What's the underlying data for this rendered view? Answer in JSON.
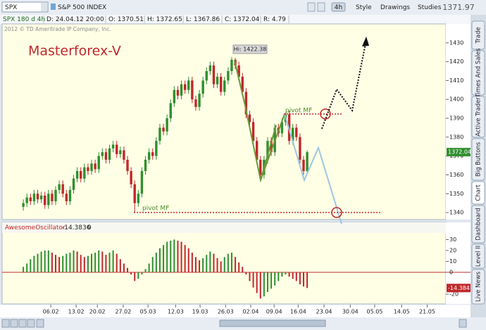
{
  "toolbar": {
    "symbol": "SPX",
    "description": "S&P 500 INDEX",
    "timeframe": "4h",
    "style": "Style",
    "drawings": "Drawings",
    "studies": "Studies",
    "last": "1371.97"
  },
  "info": [
    "SPX 180 d 4h",
    "D: 24.04.12 20:00",
    "O: 1370.51",
    "H: 1372.65",
    "L: 1367.86",
    "C: 1372.04",
    "R: 4.79"
  ],
  "sidebar": [
    "Trade",
    "Times And Sales",
    "Active Trader",
    "Big Buttons",
    "Chart",
    "Dashboard",
    "Level II",
    "Live News"
  ],
  "chart_data": [
    {
      "type": "candlestick",
      "title": "Masterforex-V",
      "watermark": "2012 © TD Ameritrade IP Company, Inc.",
      "annotations": [
        "Hi: 1422.38",
        "pivot MF",
        "pivot MF"
      ],
      "last_label": "1372.04",
      "up_color": "#2f8f2f",
      "down_color": "#c0282a",
      "open": [
        1343,
        1345,
        1348,
        1346,
        1350,
        1347,
        1349,
        1344,
        1350,
        1346,
        1352,
        1355,
        1350,
        1346,
        1352,
        1358,
        1362,
        1358,
        1364,
        1362,
        1366,
        1363,
        1370,
        1372,
        1368,
        1374,
        1376,
        1371,
        1373,
        1368,
        1362,
        1355,
        1345,
        1350,
        1362,
        1368,
        1372,
        1370,
        1378,
        1385,
        1383,
        1390,
        1398,
        1405,
        1402,
        1408,
        1405,
        1410,
        1400,
        1396,
        1403,
        1410,
        1415,
        1418,
        1408,
        1412,
        1404,
        1410,
        1415,
        1421,
        1418,
        1412,
        1404,
        1392,
        1388,
        1378,
        1368,
        1360,
        1368,
        1378,
        1372,
        1385,
        1382,
        1388,
        1392,
        1378,
        1385,
        1380,
        1368,
        1362
      ],
      "high": [
        1347,
        1350,
        1350,
        1352,
        1352,
        1351,
        1351,
        1352,
        1352,
        1354,
        1357,
        1357,
        1352,
        1354,
        1360,
        1364,
        1364,
        1366,
        1366,
        1368,
        1368,
        1372,
        1374,
        1374,
        1376,
        1378,
        1378,
        1375,
        1375,
        1370,
        1364,
        1357,
        1352,
        1364,
        1370,
        1374,
        1374,
        1380,
        1387,
        1387,
        1392,
        1400,
        1407,
        1407,
        1410,
        1410,
        1412,
        1412,
        1402,
        1405,
        1412,
        1417,
        1420,
        1420,
        1414,
        1414,
        1412,
        1417,
        1422.38,
        1422,
        1420,
        1414,
        1406,
        1394,
        1390,
        1380,
        1370,
        1370,
        1380,
        1380,
        1387,
        1387,
        1390,
        1393,
        1394,
        1387,
        1387,
        1382,
        1370,
        1373
      ],
      "low": [
        1341,
        1343,
        1344,
        1344,
        1345,
        1345,
        1342,
        1342,
        1344,
        1344,
        1350,
        1348,
        1344,
        1344,
        1350,
        1356,
        1356,
        1356,
        1360,
        1360,
        1361,
        1361,
        1368,
        1366,
        1366,
        1372,
        1369,
        1369,
        1366,
        1360,
        1353,
        1340,
        1343,
        1348,
        1360,
        1366,
        1368,
        1368,
        1376,
        1381,
        1381,
        1388,
        1396,
        1400,
        1400,
        1403,
        1403,
        1398,
        1394,
        1394,
        1401,
        1408,
        1413,
        1406,
        1406,
        1402,
        1402,
        1408,
        1413,
        1416,
        1410,
        1402,
        1390,
        1386,
        1376,
        1366,
        1357,
        1358,
        1366,
        1370,
        1370,
        1380,
        1380,
        1386,
        1376,
        1376,
        1378,
        1366,
        1360,
        1360
      ],
      "close": [
        1345,
        1348,
        1346,
        1350,
        1347,
        1349,
        1344,
        1350,
        1346,
        1352,
        1355,
        1350,
        1346,
        1352,
        1358,
        1362,
        1358,
        1364,
        1362,
        1366,
        1363,
        1370,
        1372,
        1368,
        1374,
        1376,
        1371,
        1373,
        1368,
        1362,
        1355,
        1345,
        1350,
        1362,
        1368,
        1372,
        1370,
        1378,
        1385,
        1383,
        1390,
        1398,
        1405,
        1402,
        1408,
        1405,
        1410,
        1400,
        1396,
        1403,
        1410,
        1415,
        1418,
        1408,
        1412,
        1404,
        1410,
        1415,
        1421,
        1418,
        1412,
        1404,
        1392,
        1388,
        1378,
        1368,
        1360,
        1368,
        1378,
        1372,
        1385,
        1382,
        1388,
        1392,
        1378,
        1385,
        1380,
        1368,
        1362,
        1372.04
      ],
      "xlim": [
        -5.9,
        117.6
      ],
      "xticks": [
        {
          "value": 7.65,
          "label": "06.02"
        },
        {
          "value": 14.7,
          "label": "13.02"
        },
        {
          "value": 20.6,
          "label": "20.02"
        },
        {
          "value": 27.8,
          "label": "27.02"
        },
        {
          "value": 34.7,
          "label": "05.03"
        },
        {
          "value": 42.4,
          "label": "12.03"
        },
        {
          "value": 49.2,
          "label": "19.03"
        },
        {
          "value": 56.3,
          "label": "26.03"
        },
        {
          "value": 63.3,
          "label": "02.04"
        },
        {
          "value": 69.8,
          "label": "09.04"
        },
        {
          "value": 76.5,
          "label": "16.04"
        },
        {
          "value": 83.7,
          "label": "23.04"
        },
        {
          "value": 91,
          "label": "30.04"
        },
        {
          "value": 97.8,
          "label": "05.05"
        },
        {
          "value": 105.3,
          "label": "14.05"
        },
        {
          "value": 112.4,
          "label": "21.05"
        }
      ],
      "ylim": [
        1336.3,
        1440
      ],
      "yticks": [
        1340,
        1350,
        1360,
        1370,
        1380,
        1390,
        1400,
        1410,
        1420,
        1430
      ]
    },
    {
      "type": "bar",
      "title": "AwesomeOscillator",
      "subtitle": [
        "-14.3836",
        "0"
      ],
      "last_label": "-14.384",
      "up_color": "#2f8f2f",
      "down_color": "#c0282a",
      "values": [
        5,
        8,
        12,
        15,
        17,
        19,
        20,
        20,
        18,
        16,
        14,
        15,
        17,
        18,
        20,
        19,
        16,
        14,
        15,
        17,
        18,
        20,
        19,
        16,
        18,
        20,
        17,
        12,
        8,
        4,
        -2,
        -8,
        -6,
        -2,
        3,
        8,
        14,
        18,
        22,
        25,
        28,
        29,
        30,
        29,
        28,
        25,
        22,
        18,
        14,
        11,
        13,
        16,
        19,
        17,
        13,
        10,
        14,
        17,
        18,
        14,
        9,
        5,
        -2,
        -8,
        -14,
        -19,
        -24,
        -22,
        -18,
        -15,
        -12,
        -8,
        -4,
        -2,
        -4,
        -6,
        -8,
        -11,
        -13,
        -14.3836
      ],
      "ylim": [
        -29,
        34.8
      ],
      "yticks": [
        -20,
        0,
        10,
        20,
        30
      ]
    }
  ]
}
